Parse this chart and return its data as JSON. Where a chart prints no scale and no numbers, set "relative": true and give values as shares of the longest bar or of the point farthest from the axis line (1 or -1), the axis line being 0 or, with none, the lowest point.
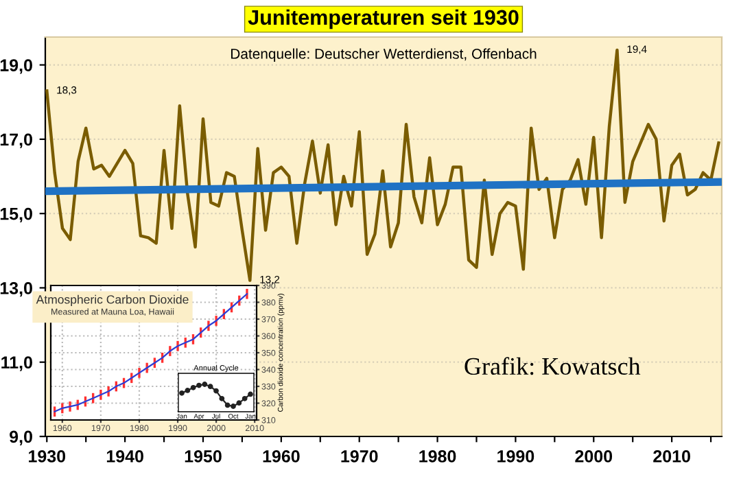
{
  "chart_data": [
    {
      "type": "line",
      "title": "Junitemperaturen seit 1930",
      "x": [
        1930,
        1931,
        1932,
        1933,
        1934,
        1935,
        1936,
        1937,
        1938,
        1939,
        1940,
        1941,
        1942,
        1943,
        1944,
        1945,
        1946,
        1947,
        1948,
        1949,
        1950,
        1951,
        1952,
        1953,
        1954,
        1955,
        1956,
        1957,
        1958,
        1959,
        1960,
        1961,
        1962,
        1963,
        1964,
        1965,
        1966,
        1967,
        1968,
        1969,
        1970,
        1971,
        1972,
        1973,
        1974,
        1975,
        1976,
        1977,
        1978,
        1979,
        1980,
        1981,
        1982,
        1983,
        1984,
        1985,
        1986,
        1987,
        1988,
        1989,
        1990,
        1991,
        1992,
        1993,
        1994,
        1995,
        1996,
        1997,
        1998,
        1999,
        2000,
        2001,
        2002,
        2003,
        2004,
        2005,
        2006,
        2007,
        2008,
        2009,
        2010,
        2011,
        2012,
        2013,
        2014,
        2015,
        2016
      ],
      "series": [
        {
          "type": "line",
          "color": "#7a5c00",
          "values": [
            18.3,
            16.1,
            14.6,
            14.3,
            16.4,
            17.3,
            16.2,
            16.3,
            16.0,
            16.35,
            16.7,
            16.35,
            14.4,
            14.35,
            14.2,
            16.7,
            14.6,
            17.9,
            15.55,
            14.1,
            17.55,
            15.3,
            15.2,
            16.1,
            16.0,
            14.55,
            13.2,
            16.75,
            14.55,
            16.1,
            16.25,
            16.0,
            14.2,
            15.8,
            16.95,
            15.55,
            16.85,
            14.7,
            16.0,
            15.2,
            17.2,
            13.9,
            14.45,
            16.15,
            14.1,
            14.75,
            17.4,
            15.45,
            14.75,
            16.5,
            14.7,
            15.25,
            16.25,
            16.25,
            13.75,
            13.55,
            15.9,
            13.9,
            15.0,
            15.3,
            15.2,
            13.5,
            17.3,
            15.65,
            15.95,
            14.35,
            15.65,
            15.9,
            16.45,
            15.25,
            17.05,
            14.35,
            17.35,
            19.4,
            15.3,
            16.4,
            16.9,
            17.4,
            17.0,
            14.8,
            16.3,
            16.6,
            15.5,
            15.65,
            16.1,
            15.9,
            16.9
          ]
        },
        {
          "type": "line",
          "color": "#1f72c4",
          "x": [
            1930,
            2016
          ],
          "values": [
            15.6,
            15.85
          ]
        }
      ],
      "xlim": [
        1929.8,
        2016.4
      ],
      "xticks": [
        1930,
        {
          "value": 1935,
          "label": null
        },
        1940,
        {
          "value": 1945,
          "label": null
        },
        1950,
        {
          "value": 1955,
          "label": null
        },
        1960,
        {
          "value": 1965,
          "label": null
        },
        1970,
        {
          "value": 1975,
          "label": null
        },
        1980,
        {
          "value": 1985,
          "label": null
        },
        1990,
        {
          "value": 1995,
          "label": null
        },
        2000,
        {
          "value": 2005,
          "label": null
        },
        2010,
        {
          "value": 2015,
          "label": null
        }
      ],
      "ylim": [
        9,
        19.75
      ],
      "yticks": [
        {
          "value": 9,
          "label": "9,0"
        },
        {
          "value": 11,
          "label": "11,0"
        },
        {
          "value": 13,
          "label": "13,0"
        },
        {
          "value": 15,
          "label": "15,0"
        },
        {
          "value": 17,
          "label": "17,0"
        },
        {
          "value": 19,
          "label": "19,0"
        }
      ],
      "grid": "y",
      "annotations": [
        {
          "text": "18,3",
          "x": 1930,
          "y": 18.3
        },
        {
          "text": "13,2",
          "x": 1956,
          "y": 13.2
        },
        {
          "text": "19,4",
          "x": 2003,
          "y": 19.4
        },
        "Datenquelle: Deutscher Wetterdienst, Offenbach",
        "Grafik: Kowatsch"
      ]
    },
    {
      "type": "line",
      "title": "Atmospheric Carbon Dioxide",
      "subtitle": "Measured at Mauna Loa, Hawaii",
      "ylabel": "Carbon dioxide concentration (ppmv)",
      "x": [
        1958,
        1960,
        1962,
        1964,
        1966,
        1968,
        1970,
        1972,
        1974,
        1976,
        1978,
        1980,
        1982,
        1984,
        1986,
        1988,
        1990,
        1992,
        1994,
        1996,
        1998,
        2000,
        2002,
        2004,
        2006,
        2008
      ],
      "series": [
        {
          "color": "#2b3fd6",
          "values": [
            315,
            317,
            318,
            319,
            321,
            323,
            325,
            327,
            330,
            332,
            335,
            338,
            341,
            344,
            347,
            351,
            354,
            356,
            358,
            362,
            366,
            369,
            373,
            377,
            381,
            385
          ],
          "errors": [
            3,
            3,
            3,
            3,
            3,
            3,
            3,
            3,
            3,
            3,
            3,
            3,
            3,
            3,
            3,
            3,
            3,
            3,
            3,
            3,
            3,
            3,
            3,
            3,
            3,
            3
          ]
        }
      ],
      "xlim": [
        1957,
        2010.5
      ],
      "xticks": [
        1960,
        1970,
        1980,
        1990,
        2000,
        2010
      ],
      "ylim": [
        310,
        390
      ],
      "yticks": [
        310,
        320,
        330,
        340,
        350,
        360,
        370,
        380,
        390
      ],
      "grid": true
    },
    {
      "type": "line",
      "title": "Annual Cycle",
      "relative": true,
      "marker": "circle",
      "categories": [
        "Jan",
        null,
        null,
        "Apr",
        null,
        null,
        "Jul",
        null,
        null,
        "Oct",
        null,
        null,
        "Jan"
      ],
      "series": [
        {
          "color": "#222222",
          "values": [
            0.6,
            0.72,
            0.85,
            0.95,
            1.0,
            0.9,
            0.7,
            0.35,
            0.05,
            0,
            0.15,
            0.35,
            0.55
          ]
        }
      ]
    }
  ]
}
